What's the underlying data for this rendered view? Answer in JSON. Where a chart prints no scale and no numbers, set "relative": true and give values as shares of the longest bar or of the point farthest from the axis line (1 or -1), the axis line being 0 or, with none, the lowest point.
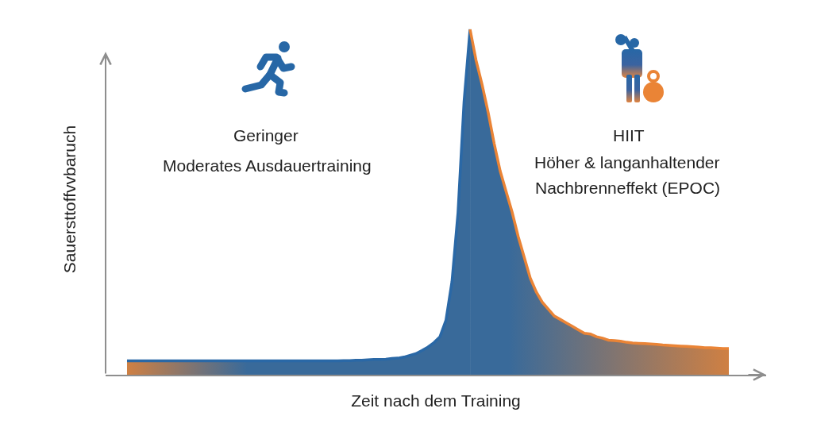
{
  "chart_data": {
    "type": "area",
    "relative": true,
    "xlabel": "Zeit nach dem Training",
    "ylabel": "Sauersttoffvvbaruch",
    "annotations": [
      "Geringer",
      "Moderates Ausdauertraining",
      "HIIT",
      "Höher & langanhaltender",
      "Nachbrenneffekt (EPOC)"
    ],
    "categories": [
      null,
      null,
      null,
      null,
      null,
      null,
      null,
      null,
      null,
      null,
      null,
      null,
      null,
      null,
      null,
      null,
      null,
      null,
      null,
      null,
      null,
      null,
      null,
      null,
      null,
      null,
      null,
      null,
      null,
      null,
      null,
      null,
      null,
      null,
      null,
      null,
      null,
      null,
      null,
      null,
      null,
      null,
      null,
      null,
      null,
      null,
      null,
      null,
      null,
      null,
      null,
      null,
      null,
      null,
      null,
      null,
      null,
      null,
      null,
      null,
      null,
      null,
      null,
      null,
      null,
      null,
      null,
      null,
      null,
      null,
      null,
      null,
      null,
      null,
      null,
      null,
      null,
      null,
      null,
      null,
      null,
      null,
      null,
      null,
      null,
      null,
      null,
      null,
      null,
      null,
      null,
      null,
      null,
      null,
      null,
      null,
      null,
      null,
      null,
      null,
      null
    ],
    "series": [
      {
        "color": "#2a68a6",
        "values": [
          0.04,
          0.04,
          0.04,
          0.04,
          0.04,
          0.04,
          0.04,
          0.04,
          0.04,
          0.04,
          0.04,
          0.04,
          0.04,
          0.04,
          0.04,
          0.04,
          0.04,
          0.04,
          0.04,
          0.04,
          0.04,
          0.04,
          0.04,
          0.04,
          0.04,
          0.04,
          0.04,
          0.04,
          0.04,
          0.04,
          0.04,
          0.04,
          0.04,
          0.04,
          0.04,
          0.04,
          0.041,
          0.041,
          0.042,
          0.042,
          0.043,
          0.044,
          0.044,
          0.045,
          0.047,
          0.048,
          0.051,
          0.056,
          0.061,
          0.07,
          0.08,
          0.093,
          0.11,
          0.158,
          0.27,
          0.47,
          0.79,
          1,
          null,
          null,
          null,
          null,
          null,
          null,
          null,
          null,
          null,
          null,
          null,
          null,
          null,
          null,
          null,
          null,
          null,
          null,
          null,
          null,
          null,
          null,
          null,
          null,
          null,
          null,
          null,
          null,
          null,
          null,
          null,
          null,
          null,
          null,
          null,
          null,
          null,
          null,
          null,
          null,
          null,
          null,
          null
        ]
      },
      {
        "color": "#ea8436",
        "values": [
          null,
          null,
          null,
          null,
          null,
          null,
          null,
          null,
          null,
          null,
          null,
          null,
          null,
          null,
          null,
          null,
          null,
          null,
          null,
          null,
          null,
          null,
          null,
          null,
          null,
          null,
          null,
          null,
          null,
          null,
          null,
          null,
          null,
          null,
          null,
          null,
          null,
          null,
          null,
          null,
          null,
          null,
          null,
          null,
          null,
          null,
          null,
          null,
          null,
          null,
          null,
          null,
          null,
          null,
          null,
          null,
          null,
          1,
          0.91,
          0.84,
          0.76,
          0.67,
          0.59,
          0.53,
          0.47,
          0.4,
          0.34,
          0.28,
          0.24,
          0.21,
          0.19,
          0.17,
          0.16,
          0.15,
          0.14,
          0.13,
          0.12,
          0.118,
          0.11,
          0.106,
          0.1,
          0.099,
          0.097,
          0.094,
          0.092,
          0.091,
          0.09,
          0.089,
          0.088,
          0.086,
          0.085,
          0.084,
          0.083,
          0.082,
          0.081,
          0.08,
          0.078,
          0.078,
          0.077,
          0.076,
          0.076
        ]
      }
    ]
  }
}
